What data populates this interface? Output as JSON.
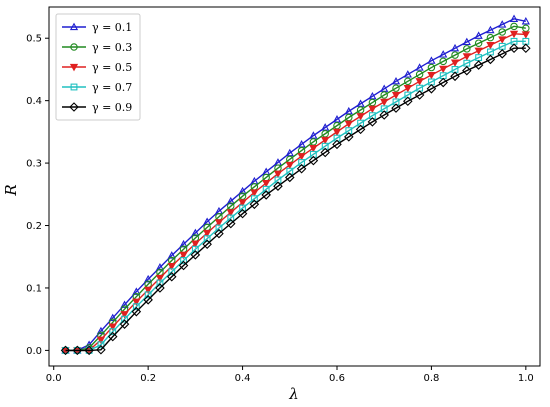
{
  "chart_data": {
    "type": "line",
    "title": "",
    "xlabel": "λ",
    "ylabel": "R",
    "xlim": [
      -0.01,
      1.03
    ],
    "ylim": [
      -0.025,
      0.55
    ],
    "xticks": [
      0.0,
      0.2,
      0.4,
      0.6,
      0.8,
      1.0
    ],
    "xtick_labels": [
      "0.0",
      "0.2",
      "0.4",
      "0.6",
      "0.8",
      "1.0"
    ],
    "yticks": [
      0.0,
      0.1,
      0.2,
      0.3,
      0.4,
      0.5
    ],
    "ytick_labels": [
      "0.0",
      "0.1",
      "0.2",
      "0.3",
      "0.4",
      "0.5"
    ],
    "grid": false,
    "legend_position": "upper-left",
    "x": [
      0.025,
      0.05,
      0.075,
      0.1,
      0.125,
      0.15,
      0.175,
      0.2,
      0.225,
      0.25,
      0.275,
      0.3,
      0.325,
      0.35,
      0.375,
      0.4,
      0.425,
      0.45,
      0.475,
      0.5,
      0.525,
      0.55,
      0.575,
      0.6,
      0.625,
      0.65,
      0.675,
      0.7,
      0.725,
      0.75,
      0.775,
      0.8,
      0.825,
      0.85,
      0.875,
      0.9,
      0.925,
      0.95,
      0.975,
      1.0
    ],
    "series": [
      {
        "name": "γ = 0.1",
        "color": "#1f1fd0",
        "marker": "triangle-up",
        "values": [
          0.0,
          0.0,
          0.009,
          0.031,
          0.052,
          0.073,
          0.094,
          0.114,
          0.133,
          0.152,
          0.17,
          0.188,
          0.206,
          0.223,
          0.239,
          0.255,
          0.271,
          0.286,
          0.301,
          0.316,
          0.33,
          0.344,
          0.357,
          0.37,
          0.383,
          0.395,
          0.407,
          0.419,
          0.431,
          0.442,
          0.453,
          0.464,
          0.474,
          0.484,
          0.494,
          0.504,
          0.513,
          0.522,
          0.531,
          0.527
        ]
      },
      {
        "name": "γ = 0.3",
        "color": "#208a20",
        "marker": "circle",
        "values": [
          0.0,
          0.0,
          0.004,
          0.024,
          0.045,
          0.066,
          0.086,
          0.106,
          0.125,
          0.144,
          0.162,
          0.18,
          0.197,
          0.214,
          0.231,
          0.247,
          0.262,
          0.277,
          0.292,
          0.306,
          0.32,
          0.334,
          0.347,
          0.36,
          0.373,
          0.385,
          0.397,
          0.409,
          0.42,
          0.431,
          0.442,
          0.453,
          0.463,
          0.473,
          0.483,
          0.492,
          0.501,
          0.51,
          0.519,
          0.516
        ]
      },
      {
        "name": "γ = 0.5",
        "color": "#e02020",
        "marker": "triangle-down",
        "values": [
          0.0,
          0.0,
          0.0,
          0.017,
          0.038,
          0.058,
          0.078,
          0.097,
          0.116,
          0.135,
          0.153,
          0.171,
          0.188,
          0.205,
          0.221,
          0.237,
          0.253,
          0.268,
          0.283,
          0.297,
          0.311,
          0.324,
          0.337,
          0.35,
          0.363,
          0.375,
          0.387,
          0.398,
          0.409,
          0.42,
          0.431,
          0.441,
          0.451,
          0.461,
          0.471,
          0.48,
          0.489,
          0.498,
          0.507,
          0.506
        ]
      },
      {
        "name": "γ = 0.7",
        "color": "#20c0c0",
        "marker": "square",
        "values": [
          0.0,
          0.0,
          0.0,
          0.009,
          0.03,
          0.05,
          0.07,
          0.089,
          0.108,
          0.126,
          0.144,
          0.162,
          0.179,
          0.196,
          0.212,
          0.228,
          0.243,
          0.258,
          0.273,
          0.287,
          0.301,
          0.314,
          0.327,
          0.34,
          0.352,
          0.364,
          0.376,
          0.387,
          0.398,
          0.409,
          0.42,
          0.43,
          0.44,
          0.45,
          0.46,
          0.469,
          0.478,
          0.487,
          0.495,
          0.495
        ]
      },
      {
        "name": "γ = 0.9",
        "color": "#000000",
        "marker": "diamond",
        "values": [
          0.0,
          0.0,
          0.0,
          0.001,
          0.022,
          0.042,
          0.062,
          0.081,
          0.1,
          0.118,
          0.136,
          0.153,
          0.17,
          0.187,
          0.203,
          0.219,
          0.234,
          0.249,
          0.263,
          0.277,
          0.291,
          0.304,
          0.317,
          0.33,
          0.342,
          0.354,
          0.366,
          0.377,
          0.388,
          0.399,
          0.409,
          0.419,
          0.429,
          0.439,
          0.448,
          0.457,
          0.466,
          0.475,
          0.484,
          0.484
        ]
      }
    ]
  }
}
